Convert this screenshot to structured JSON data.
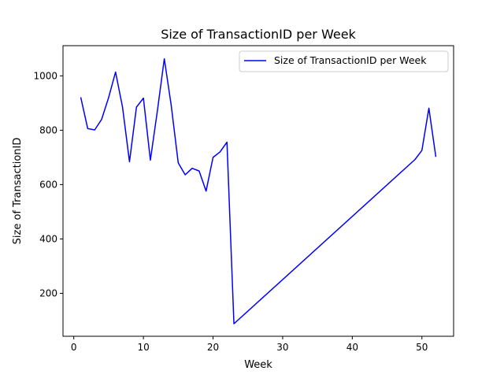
{
  "chart_data": {
    "type": "line",
    "title": "Size of TransactionID per Week",
    "xlabel": "Week",
    "ylabel": "Size of TransactionID",
    "xlim": [
      -1.55,
      54.55
    ],
    "ylim": [
      42,
      1111
    ],
    "xticks": [
      0,
      10,
      20,
      30,
      40,
      50
    ],
    "yticks": [
      200,
      400,
      600,
      800,
      1000
    ],
    "grid": false,
    "legend_position": "top-right",
    "series": [
      {
        "name": "Size of TransactionID per Week",
        "color": "#0000ff",
        "x": [
          1,
          2,
          3,
          4,
          5,
          6,
          7,
          8,
          9,
          10,
          11,
          12,
          13,
          14,
          15,
          16,
          17,
          18,
          19,
          20,
          21,
          22,
          23,
          49,
          50,
          51,
          52
        ],
        "y": [
          921,
          806,
          801,
          840,
          920,
          1014,
          885,
          684,
          885,
          918,
          690,
          870,
          1063,
          890,
          680,
          636,
          660,
          650,
          576,
          700,
          720,
          756,
          88,
          692,
          726,
          881,
          702
        ]
      }
    ]
  }
}
